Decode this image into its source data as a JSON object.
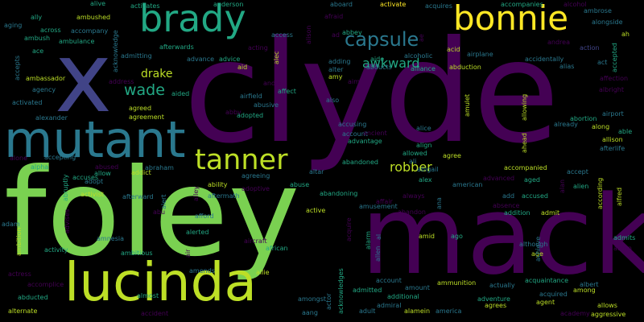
{
  "background": "#000000",
  "palette": {
    "lime": "#7ad151",
    "green": "#22a884",
    "teal": "#2a788e",
    "blue": "#414487",
    "purple": "#440154",
    "yellow": "#fde725",
    "olive": "#bddf26",
    "slate": "#355f8d"
  },
  "words": [
    {
      "id": "clyde",
      "text": "clyde"
    },
    {
      "id": "foley",
      "text": "foley"
    },
    {
      "id": "mack",
      "text": "mack"
    },
    {
      "id": "x",
      "text": "x"
    },
    {
      "id": "mutant",
      "text": "mutant"
    },
    {
      "id": "lucinda",
      "text": "lucinda"
    },
    {
      "id": "brady",
      "text": "brady"
    },
    {
      "id": "bonnie",
      "text": "bonnie"
    },
    {
      "id": "tanner",
      "text": "tanner"
    },
    {
      "id": "capsule",
      "text": "capsule"
    },
    {
      "id": "drake",
      "text": "drake"
    },
    {
      "id": "wade",
      "text": "wade"
    },
    {
      "id": "awkward",
      "text": "awkward"
    },
    {
      "id": "robber",
      "text": "robber"
    },
    {
      "id": "alive",
      "text": "alive"
    },
    {
      "id": "activates",
      "text": "activates"
    },
    {
      "id": "anderson",
      "text": "anderson"
    },
    {
      "id": "aboard",
      "text": "aboard"
    },
    {
      "id": "activate",
      "text": "activate"
    },
    {
      "id": "acquires",
      "text": "acquires"
    },
    {
      "id": "accompanies",
      "text": "accompanies"
    },
    {
      "id": "alcohol",
      "text": "alcohol"
    },
    {
      "id": "ambrose",
      "text": "ambrose"
    },
    {
      "id": "ally",
      "text": "ally"
    },
    {
      "id": "ambushed",
      "text": "ambushed"
    },
    {
      "id": "afraid",
      "text": "afraid"
    },
    {
      "id": "aging",
      "text": "aging"
    },
    {
      "id": "across",
      "text": "across"
    },
    {
      "id": "accompany",
      "text": "accompany"
    },
    {
      "id": "abbey",
      "text": "abbey"
    },
    {
      "id": "ad",
      "text": "ad"
    },
    {
      "id": "ah",
      "text": "ah"
    },
    {
      "id": "alongside",
      "text": "alongside"
    },
    {
      "id": "ambush",
      "text": "ambush"
    },
    {
      "id": "ambulance",
      "text": "ambulance"
    },
    {
      "id": "access",
      "text": "access"
    },
    {
      "id": "ace",
      "text": "ace"
    },
    {
      "id": "andrea",
      "text": "andrea"
    },
    {
      "id": "afterwards",
      "text": "afterwards"
    },
    {
      "id": "acting",
      "text": "acting"
    },
    {
      "id": "acid",
      "text": "acid"
    },
    {
      "id": "airplane",
      "text": "airplane"
    },
    {
      "id": "action",
      "text": "action"
    },
    {
      "id": "admitting",
      "text": "admitting"
    },
    {
      "id": "advance",
      "text": "advance"
    },
    {
      "id": "advice",
      "text": "advice"
    },
    {
      "id": "adding",
      "text": "adding"
    },
    {
      "id": "aide",
      "text": "aide"
    },
    {
      "id": "alcoholic",
      "text": "alcoholic"
    },
    {
      "id": "accidentally",
      "text": "accidentally"
    },
    {
      "id": "act",
      "text": "act"
    },
    {
      "id": "aid",
      "text": "aid"
    },
    {
      "id": "alter",
      "text": "alter"
    },
    {
      "id": "abducts",
      "text": "abducts"
    },
    {
      "id": "alliance",
      "text": "alliance"
    },
    {
      "id": "abduction",
      "text": "abduction"
    },
    {
      "id": "alias",
      "text": "alias"
    },
    {
      "id": "ambassador",
      "text": "ambassador"
    },
    {
      "id": "address",
      "text": "address"
    },
    {
      "id": "amy",
      "text": "amy"
    },
    {
      "id": "aim",
      "text": "aim"
    },
    {
      "id": "andie",
      "text": "andie"
    },
    {
      "id": "affection",
      "text": "affection"
    },
    {
      "id": "agency",
      "text": "agency"
    },
    {
      "id": "aided",
      "text": "aided"
    },
    {
      "id": "affect",
      "text": "affect"
    },
    {
      "id": "albright",
      "text": "albright"
    },
    {
      "id": "activated",
      "text": "activated"
    },
    {
      "id": "airfield",
      "text": "airfield"
    },
    {
      "id": "also",
      "text": "also"
    },
    {
      "id": "agreed",
      "text": "agreed"
    },
    {
      "id": "abusive",
      "text": "abusive"
    },
    {
      "id": "airport",
      "text": "airport"
    },
    {
      "id": "alexander",
      "text": "alexander"
    },
    {
      "id": "agreement",
      "text": "agreement"
    },
    {
      "id": "abby",
      "text": "abby"
    },
    {
      "id": "adopted",
      "text": "adopted"
    },
    {
      "id": "abortion",
      "text": "abortion"
    },
    {
      "id": "able",
      "text": "able"
    },
    {
      "id": "accusing",
      "text": "accusing"
    },
    {
      "id": "already",
      "text": "already"
    },
    {
      "id": "along",
      "text": "along"
    },
    {
      "id": "account",
      "text": "account"
    },
    {
      "id": "alice",
      "text": "alice"
    },
    {
      "id": "allison",
      "text": "allison"
    },
    {
      "id": "advantage",
      "text": "advantage"
    },
    {
      "id": "align",
      "text": "align"
    },
    {
      "id": "afterlife",
      "text": "afterlife"
    },
    {
      "id": "ancient",
      "text": "ancient"
    },
    {
      "id": "allowed",
      "text": "allowed"
    },
    {
      "id": "agree",
      "text": "agree"
    },
    {
      "id": "alone",
      "text": "alone"
    },
    {
      "id": "accepting",
      "text": "accepting"
    },
    {
      "id": "ali",
      "text": "ali"
    },
    {
      "id": "abandoned",
      "text": "abandoned"
    },
    {
      "id": "accompanied",
      "text": "accompanied"
    },
    {
      "id": "alpha",
      "text": "alpha"
    },
    {
      "id": "abused",
      "text": "abused"
    },
    {
      "id": "abraham",
      "text": "abraham"
    },
    {
      "id": "abigail",
      "text": "abigail"
    },
    {
      "id": "accept",
      "text": "accept"
    },
    {
      "id": "accuses",
      "text": "accuses"
    },
    {
      "id": "allow",
      "text": "allow"
    },
    {
      "id": "addict",
      "text": "addict"
    },
    {
      "id": "advanced",
      "text": "advanced"
    },
    {
      "id": "aged",
      "text": "aged"
    },
    {
      "id": "adopt",
      "text": "adopt"
    },
    {
      "id": "agreeing",
      "text": "agreeing"
    },
    {
      "id": "altar",
      "text": "altar"
    },
    {
      "id": "alex",
      "text": "alex"
    },
    {
      "id": "alien",
      "text": "alien"
    },
    {
      "id": "activist",
      "text": "activist"
    },
    {
      "id": "ability",
      "text": "ability"
    },
    {
      "id": "abuse",
      "text": "abuse"
    },
    {
      "id": "american",
      "text": "american"
    },
    {
      "id": "afterward",
      "text": "afterward"
    },
    {
      "id": "adoptive",
      "text": "adoptive"
    },
    {
      "id": "abandoning",
      "text": "abandoning"
    },
    {
      "id": "add",
      "text": "add"
    },
    {
      "id": "accused",
      "text": "accused"
    },
    {
      "id": "aftermath",
      "text": "aftermath"
    },
    {
      "id": "always",
      "text": "always"
    },
    {
      "id": "affair",
      "text": "affair"
    },
    {
      "id": "absence",
      "text": "absence"
    },
    {
      "id": "abu",
      "text": "abu"
    },
    {
      "id": "amusement",
      "text": "amusement"
    },
    {
      "id": "abandon",
      "text": "abandon"
    },
    {
      "id": "addition",
      "text": "addition"
    },
    {
      "id": "admit",
      "text": "admit"
    },
    {
      "id": "afford",
      "text": "afford"
    },
    {
      "id": "active",
      "text": "active"
    },
    {
      "id": "adam",
      "text": "adam"
    },
    {
      "id": "alerted",
      "text": "alerted"
    },
    {
      "id": "amid",
      "text": "amid"
    },
    {
      "id": "ago",
      "text": "ago"
    },
    {
      "id": "admits",
      "text": "admits"
    },
    {
      "id": "amnesia",
      "text": "amnesia"
    },
    {
      "id": "aircraft",
      "text": "aircraft"
    },
    {
      "id": "although",
      "text": "although"
    },
    {
      "id": "aaron",
      "text": "aaron"
    },
    {
      "id": "activity",
      "text": "activity"
    },
    {
      "id": "ambitious",
      "text": "ambitious"
    },
    {
      "id": "african",
      "text": "african"
    },
    {
      "id": "age",
      "text": "age"
    },
    {
      "id": "actress",
      "text": "actress"
    },
    {
      "id": "amends",
      "text": "amends"
    },
    {
      "id": "allie",
      "text": "allie"
    },
    {
      "id": "accomplice",
      "text": "accomplice"
    },
    {
      "id": "admitted",
      "text": "admitted"
    },
    {
      "id": "account2",
      "text": "account"
    },
    {
      "id": "actually",
      "text": "actually"
    },
    {
      "id": "acquaintance",
      "text": "acquaintance"
    },
    {
      "id": "albert",
      "text": "albert"
    },
    {
      "id": "among",
      "text": "among"
    },
    {
      "id": "ammunition",
      "text": "ammunition"
    },
    {
      "id": "amount",
      "text": "amount"
    },
    {
      "id": "abducted",
      "text": "abducted"
    },
    {
      "id": "almost",
      "text": "almost"
    },
    {
      "id": "amongst",
      "text": "amongst"
    },
    {
      "id": "additional",
      "text": "additional"
    },
    {
      "id": "adventure",
      "text": "adventure"
    },
    {
      "id": "acquired",
      "text": "acquired"
    },
    {
      "id": "agent",
      "text": "agent"
    },
    {
      "id": "agrees",
      "text": "agrees"
    },
    {
      "id": "allows",
      "text": "allows"
    },
    {
      "id": "alternate",
      "text": "alternate"
    },
    {
      "id": "aang",
      "text": "aang"
    },
    {
      "id": "admiral",
      "text": "admiral"
    },
    {
      "id": "alamein",
      "text": "alamein"
    },
    {
      "id": "america",
      "text": "america"
    },
    {
      "id": "accident",
      "text": "accident"
    },
    {
      "id": "adult",
      "text": "adult"
    },
    {
      "id": "academy",
      "text": "academy"
    },
    {
      "id": "aggressive",
      "text": "aggressive"
    },
    {
      "id": "acknowledge",
      "text": "acknowledge"
    },
    {
      "id": "alison",
      "text": "alison"
    },
    {
      "id": "ae",
      "text": "ae"
    },
    {
      "id": "accepted",
      "text": "accepted"
    },
    {
      "id": "accepts",
      "text": "accepts"
    },
    {
      "id": "alec",
      "text": "alec"
    },
    {
      "id": "allowing",
      "text": "allowing"
    },
    {
      "id": "amulet",
      "text": "amulet"
    },
    {
      "id": "ahead",
      "text": "ahead"
    },
    {
      "id": "according",
      "text": "according"
    },
    {
      "id": "alfred",
      "text": "alfred"
    },
    {
      "id": "abruptly",
      "text": "abruptly"
    },
    {
      "id": "advises",
      "text": "advises"
    },
    {
      "id": "alert",
      "text": "alert"
    },
    {
      "id": "alley",
      "text": "alley"
    },
    {
      "id": "ambition",
      "text": "ambition"
    },
    {
      "id": "air",
      "text": "air"
    },
    {
      "id": "alan",
      "text": "alan"
    },
    {
      "id": "acquire",
      "text": "acquire"
    },
    {
      "id": "alarm",
      "text": "alarm"
    },
    {
      "id": "allen",
      "text": "allen"
    },
    {
      "id": "ana",
      "text": "ana"
    },
    {
      "id": "achieve",
      "text": "achieve"
    },
    {
      "id": "acknowledges",
      "text": "acknowledges"
    },
    {
      "id": "actor",
      "text": "actor"
    },
    {
      "id": "al",
      "text": "al"
    }
  ]
}
